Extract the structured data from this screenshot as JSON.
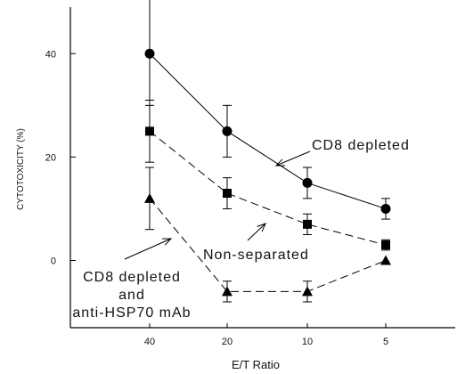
{
  "chart_data": {
    "type": "line",
    "title": "",
    "xlabel": "E/T Ratio",
    "ylabel": "CYTOTOXICITY (%)",
    "categories": [
      "40",
      "20",
      "10",
      "5"
    ],
    "x_tick_labels": [
      "40",
      "20",
      "10",
      "5"
    ],
    "y_ticks": [
      0,
      20,
      40
    ],
    "y_tick_labels": [
      "0",
      "20",
      "40"
    ],
    "ylim": [
      -13,
      49
    ],
    "grid": false,
    "legend": "none",
    "series": [
      {
        "name": "CD8 depleted",
        "marker": "circle",
        "line": "solid",
        "values": [
          40,
          25,
          15,
          10
        ],
        "err_up": [
          40,
          5,
          3,
          2
        ],
        "err_down": [
          10,
          5,
          3,
          2
        ],
        "color": "#000000"
      },
      {
        "name": "Non-separated",
        "marker": "square",
        "line": "dashed",
        "values": [
          25,
          13,
          7,
          3
        ],
        "err_up": [
          6,
          3,
          2,
          1
        ],
        "err_down": [
          6,
          3,
          2,
          1
        ],
        "color": "#000000"
      },
      {
        "name": "CD8 depleted and anti-HSP70 mAb",
        "marker": "triangle",
        "line": "dashed",
        "values": [
          12,
          -6,
          -6,
          0
        ],
        "err_up": [
          6,
          2,
          2,
          0
        ],
        "err_down": [
          6,
          2,
          2,
          0
        ],
        "color": "#000000"
      }
    ],
    "annotations": [
      {
        "lines": [
          "CD8 depleted"
        ],
        "series": 0
      },
      {
        "lines": [
          "Non-separated"
        ],
        "series": 1
      },
      {
        "lines": [
          "CD8 depleted",
          "and",
          "anti-HSP70 mAb"
        ],
        "series": 2
      }
    ]
  }
}
